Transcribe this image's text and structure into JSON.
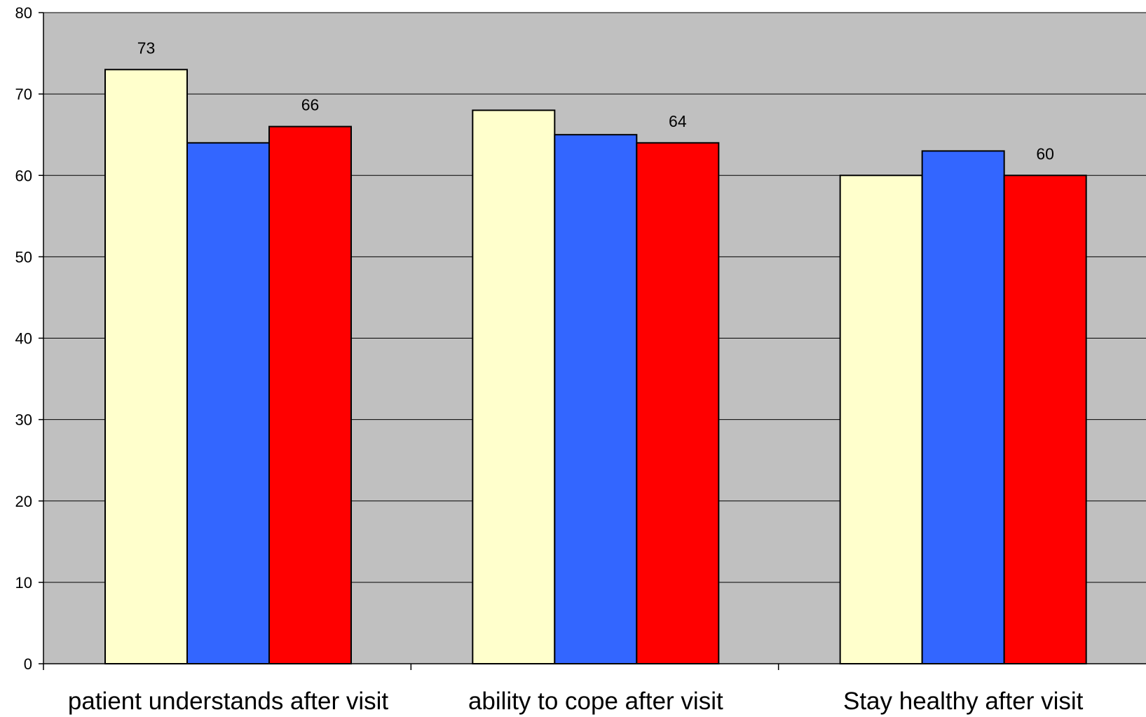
{
  "chart_data": {
    "type": "bar",
    "title": "",
    "xlabel": "",
    "ylabel": "",
    "ylim": [
      0,
      80
    ],
    "yticks": [
      0,
      10,
      20,
      30,
      40,
      50,
      60,
      70,
      80
    ],
    "grid": true,
    "legend": "none",
    "categories": [
      "patient understands after visit",
      "ability to cope after visit",
      "Stay healthy after visit"
    ],
    "series": [
      {
        "color": "#FFFFCC",
        "values": [
          73,
          68,
          60
        ]
      },
      {
        "color": "#3366FF",
        "values": [
          64,
          65,
          63
        ]
      },
      {
        "color": "#FF0000",
        "values": [
          66,
          64,
          60
        ]
      }
    ],
    "data_labels": [
      {
        "category_index": 0,
        "series_index": 0,
        "text": "73"
      },
      {
        "category_index": 0,
        "series_index": 2,
        "text": "66"
      },
      {
        "category_index": 1,
        "series_index": 2,
        "text": "64"
      },
      {
        "category_index": 2,
        "series_index": 2,
        "text": "60"
      }
    ],
    "plot_background": "#C0C0C0"
  }
}
